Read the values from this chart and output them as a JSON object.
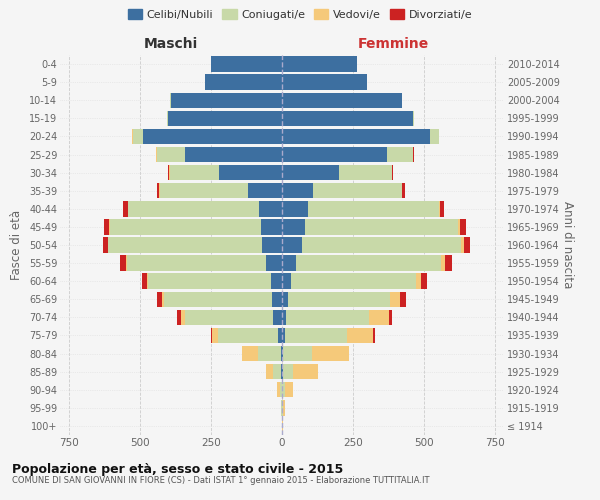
{
  "age_groups": [
    "100+",
    "95-99",
    "90-94",
    "85-89",
    "80-84",
    "75-79",
    "70-74",
    "65-69",
    "60-64",
    "55-59",
    "50-54",
    "45-49",
    "40-44",
    "35-39",
    "30-34",
    "25-29",
    "20-24",
    "15-19",
    "10-14",
    "5-9",
    "0-4"
  ],
  "birth_years": [
    "≤ 1914",
    "1915-1919",
    "1920-1924",
    "1925-1929",
    "1930-1934",
    "1935-1939",
    "1940-1944",
    "1945-1949",
    "1950-1954",
    "1955-1959",
    "1960-1964",
    "1965-1969",
    "1970-1974",
    "1975-1979",
    "1980-1984",
    "1985-1989",
    "1990-1994",
    "1995-1999",
    "2000-2004",
    "2005-2009",
    "2010-2014"
  ],
  "male": {
    "celibe": [
      0,
      0,
      0,
      2,
      5,
      15,
      30,
      35,
      40,
      55,
      70,
      75,
      80,
      120,
      220,
      340,
      490,
      400,
      390,
      270,
      250
    ],
    "coniugato": [
      0,
      2,
      8,
      30,
      80,
      210,
      310,
      380,
      430,
      490,
      540,
      530,
      460,
      310,
      175,
      100,
      35,
      5,
      2,
      0,
      0
    ],
    "vedovo": [
      0,
      2,
      8,
      25,
      55,
      20,
      15,
      5,
      4,
      3,
      2,
      2,
      2,
      2,
      2,
      2,
      2,
      0,
      0,
      0,
      0
    ],
    "divorziato": [
      0,
      0,
      0,
      0,
      0,
      5,
      15,
      18,
      18,
      20,
      18,
      18,
      15,
      8,
      5,
      2,
      1,
      0,
      0,
      0,
      0
    ]
  },
  "female": {
    "nubile": [
      0,
      0,
      0,
      2,
      5,
      10,
      15,
      20,
      30,
      50,
      70,
      80,
      90,
      110,
      200,
      370,
      520,
      460,
      420,
      300,
      265
    ],
    "coniugata": [
      0,
      2,
      10,
      35,
      100,
      220,
      290,
      360,
      440,
      510,
      560,
      540,
      460,
      310,
      185,
      90,
      30,
      5,
      0,
      0,
      0
    ],
    "vedova": [
      2,
      8,
      30,
      90,
      130,
      90,
      70,
      35,
      18,
      12,
      8,
      5,
      5,
      3,
      2,
      2,
      2,
      0,
      0,
      0,
      0
    ],
    "divorziata": [
      0,
      0,
      0,
      0,
      0,
      5,
      10,
      20,
      22,
      25,
      22,
      20,
      15,
      8,
      4,
      2,
      1,
      0,
      0,
      0,
      0
    ]
  },
  "colors": {
    "celibe": "#3d6fa0",
    "coniugato": "#c8d9a8",
    "vedovo": "#f5c97a",
    "divorziato": "#cc2222"
  },
  "xlim": 780,
  "title": "Popolazione per età, sesso e stato civile - 2015",
  "subtitle": "COMUNE DI SAN GIOVANNI IN FIORE (CS) - Dati ISTAT 1° gennaio 2015 - Elaborazione TUTTITALIA.IT",
  "ylabel": "Fasce di età",
  "ylabel_right": "Anni di nascita",
  "xlabel_maschi": "Maschi",
  "xlabel_femmine": "Femmine",
  "bg_color": "#f5f5f5",
  "grid_color": "#cccccc"
}
